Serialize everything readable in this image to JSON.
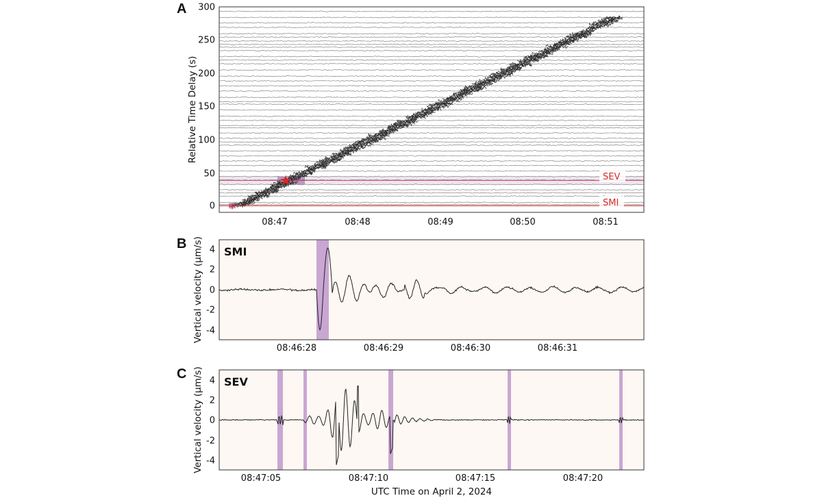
{
  "chart_data": [
    {
      "panel": "A",
      "type": "line",
      "ylabel": "Relative Time Delay (s)",
      "ylim": [
        -10,
        300
      ],
      "yticks": [
        "0",
        "50",
        "100",
        "150",
        "200",
        "250",
        "300"
      ],
      "xticks": [
        "08:47",
        "08:48",
        "08:49",
        "08:50",
        "08:51"
      ],
      "station_labels": [
        "SEV",
        "SMI"
      ],
      "station_delays_s": {
        "SEV": 38,
        "SMI": 0
      },
      "colors": {
        "trace": "#444444",
        "station": "#d42a2a",
        "highlight": "#b48cc0"
      }
    },
    {
      "panel": "B",
      "type": "line",
      "station": "SMI",
      "ylabel": "Vertical velocity (μm/s)",
      "ylim": [
        -5,
        5
      ],
      "yticks": [
        "4",
        "2",
        "0",
        "-2",
        "-4"
      ],
      "xticks": [
        "08:46:28",
        "08:46:29",
        "08:46:30",
        "08:46:31"
      ],
      "peak_max_um_s": 4.2,
      "peak_min_um_s": -4.0,
      "colors": {
        "background": "#fdf8f3",
        "highlight": "#c9a6d3",
        "trace": "#222222"
      }
    },
    {
      "panel": "C",
      "type": "line",
      "station": "SEV",
      "ylabel": "Vertical velocity (μm/s)",
      "xlabel": "UTC Time on April 2, 2024",
      "ylim": [
        -5,
        5
      ],
      "yticks": [
        "4",
        "2",
        "0",
        "-2",
        "-4"
      ],
      "xticks": [
        "08:47:05",
        "08:47:10",
        "08:47:15",
        "08:47:20"
      ],
      "peak_max_um_s": 3.4,
      "peak_min_um_s": -4.8,
      "colors": {
        "background": "#fdf8f3",
        "highlight": "#c9a6d3",
        "trace": "#222222"
      }
    }
  ]
}
